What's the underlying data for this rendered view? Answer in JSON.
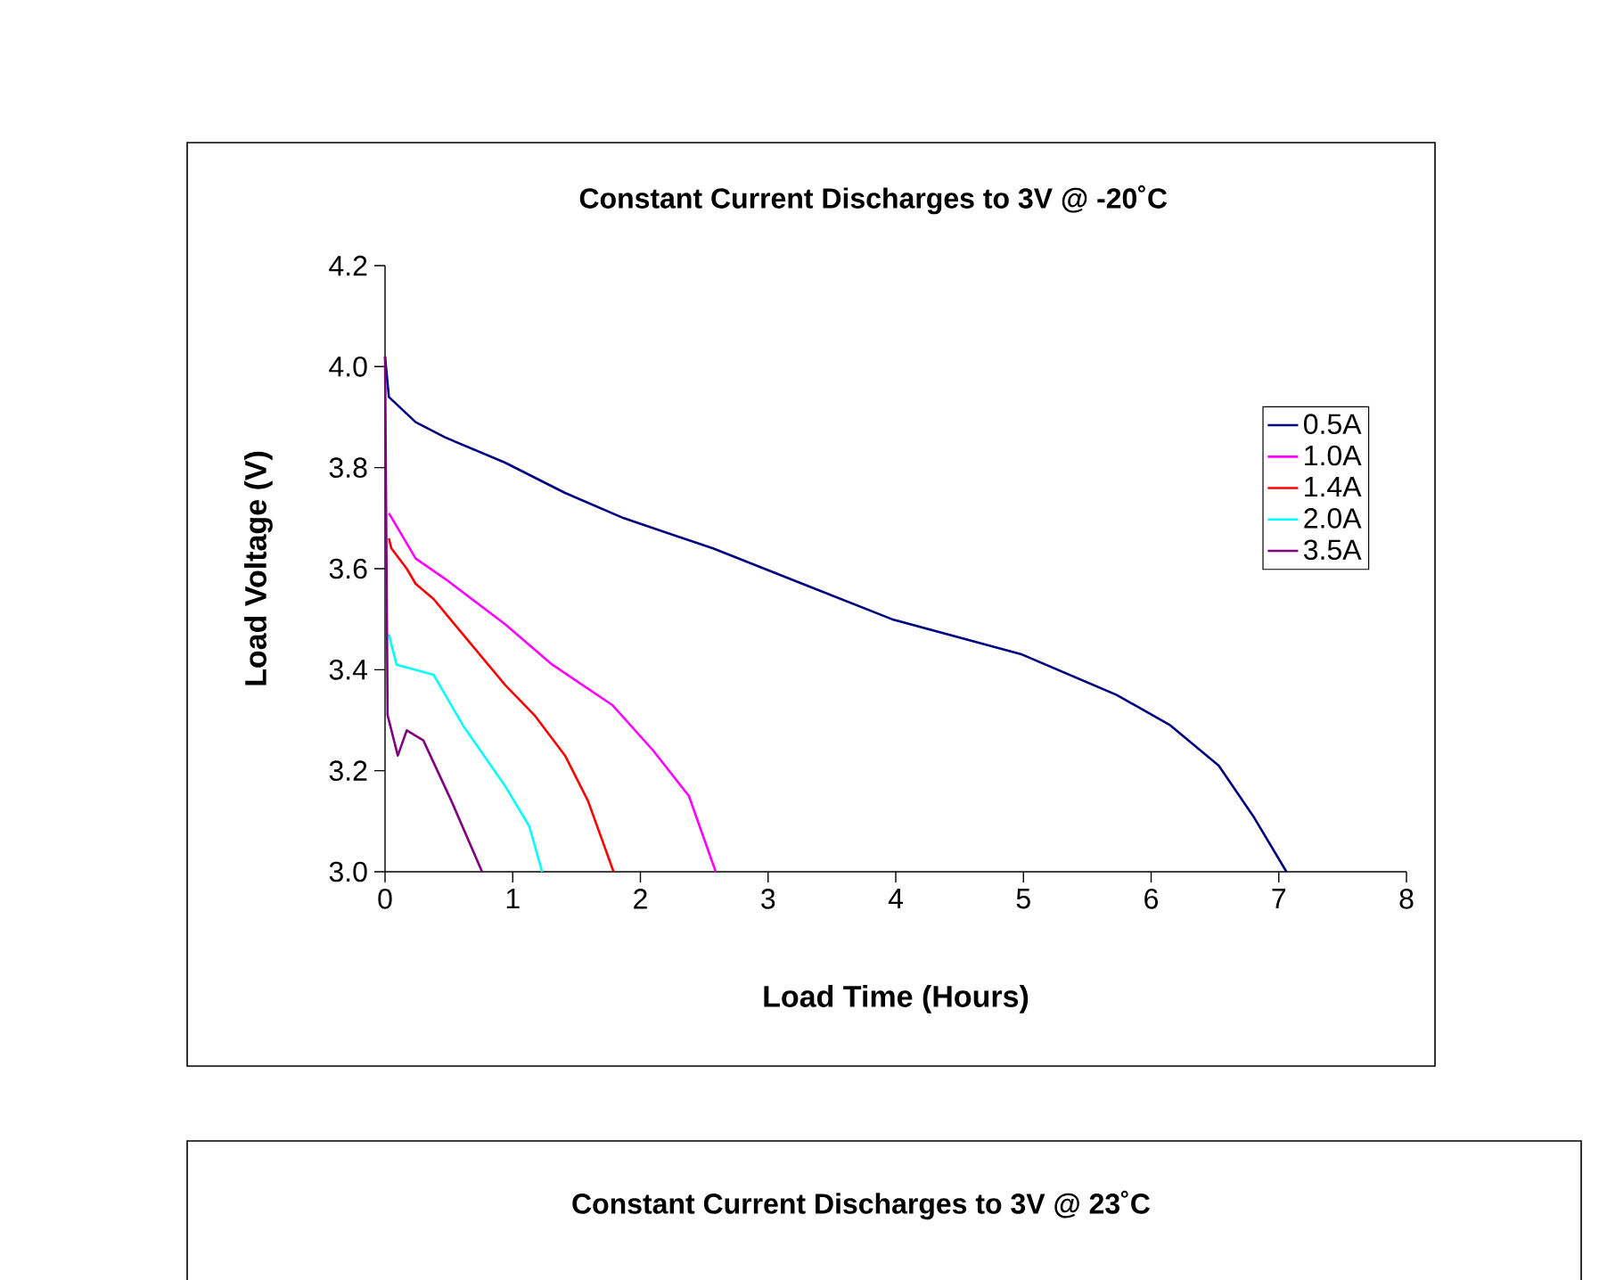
{
  "chart_data": [
    {
      "type": "line",
      "title": "Constant Current Discharges to 3V @ -20˚C",
      "xlabel": "Load Time (Hours)",
      "ylabel": "Load Voltage (V)",
      "xlim": [
        0,
        8
      ],
      "xticks": [
        0,
        1,
        2,
        3,
        4,
        5,
        6,
        7,
        8
      ],
      "ylim": [
        3,
        4.2
      ],
      "yticks": [
        {
          "value": 3,
          "label": "3.0"
        },
        {
          "value": 3.2,
          "label": "3.2"
        },
        {
          "value": 3.4,
          "label": "3.4"
        },
        {
          "value": 3.6,
          "label": "3.6"
        },
        {
          "value": 3.8,
          "label": "3.8"
        },
        {
          "value": 4,
          "label": "4.0"
        },
        {
          "value": 4.2,
          "label": "4.2"
        }
      ],
      "legend": "right",
      "grid": false,
      "marker": "none",
      "line_style": "solid",
      "series": [
        {
          "name": "0.5A",
          "color": "#000080",
          "x": [
            0,
            0.03,
            0.24,
            0.47,
            0.94,
            1.41,
            1.87,
            2.57,
            3.27,
            3.97,
            4.99,
            5.73,
            6.15,
            6.53,
            6.8,
            7.06
          ],
          "values": [
            4.02,
            3.94,
            3.89,
            3.86,
            3.81,
            3.75,
            3.7,
            3.64,
            3.57,
            3.5,
            3.43,
            3.35,
            3.29,
            3.21,
            3.11,
            3.0
          ]
        },
        {
          "name": "1.0A",
          "color": "#ff00ff",
          "x": [
            0.03,
            0.24,
            0.47,
            0.94,
            1.31,
            1.78,
            2.1,
            2.38,
            2.59
          ],
          "values": [
            3.71,
            3.62,
            3.58,
            3.49,
            3.41,
            3.33,
            3.24,
            3.15,
            3.0
          ]
        },
        {
          "name": "1.4A",
          "color": "#ff0000",
          "x": [
            0.03,
            0.05,
            0.17,
            0.24,
            0.38,
            0.61,
            0.94,
            1.17,
            1.41,
            1.59,
            1.79
          ],
          "values": [
            3.66,
            3.64,
            3.6,
            3.57,
            3.54,
            3.47,
            3.37,
            3.31,
            3.23,
            3.14,
            3.0
          ]
        },
        {
          "name": "2.0A",
          "color": "#00ffff",
          "x": [
            0.03,
            0.09,
            0.38,
            0.61,
            0.94,
            1.13,
            1.23
          ],
          "values": [
            3.47,
            3.41,
            3.39,
            3.29,
            3.17,
            3.09,
            3.0
          ]
        },
        {
          "name": "3.5A",
          "color": "#800080",
          "x": [
            0,
            0.02,
            0.05,
            0.1,
            0.17,
            0.3,
            0.52,
            0.76
          ],
          "values": [
            4.02,
            3.31,
            3.28,
            3.23,
            3.28,
            3.26,
            3.14,
            3.0
          ]
        }
      ]
    },
    {
      "type": "other",
      "title": "Constant Current Discharges to 3V @ 23˚C"
    }
  ]
}
